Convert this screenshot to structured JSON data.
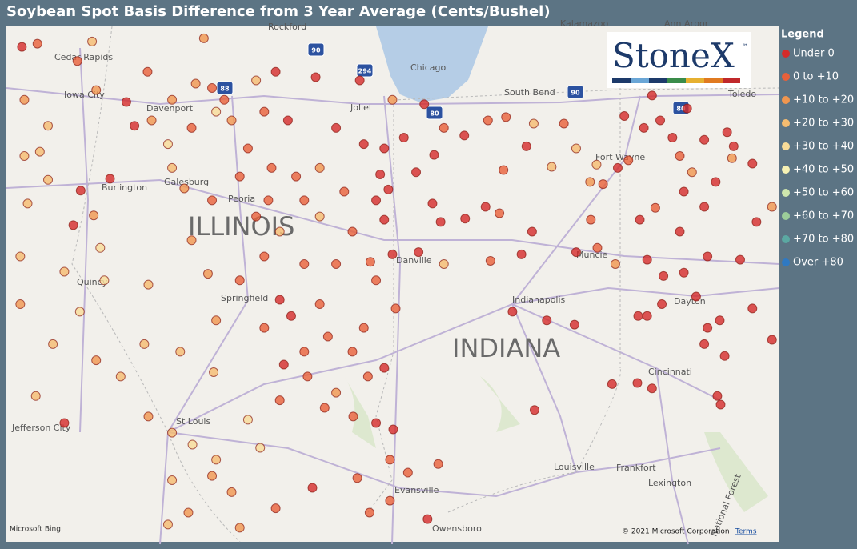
{
  "title": "Soybean Spot Basis Difference from 3 Year Average (Cents/Bushel)",
  "legend": {
    "title": "Legend",
    "items": [
      {
        "label": "Under 0",
        "color": "#d42a2a"
      },
      {
        "label": "0 to +10",
        "color": "#e8603a"
      },
      {
        "label": "+10 to +20",
        "color": "#f0964f"
      },
      {
        "label": "+20 to +30",
        "color": "#f5bc70"
      },
      {
        "label": "+30 to +40",
        "color": "#f8dc98"
      },
      {
        "label": "+40 to +50",
        "color": "#f6f1b4"
      },
      {
        "label": "+50 to +60",
        "color": "#cfe6ad"
      },
      {
        "label": "+60 to +70",
        "color": "#9ccd99"
      },
      {
        "label": "+70 to +80",
        "color": "#5ba8a2"
      },
      {
        "label": "Over +80",
        "color": "#2f79c2"
      }
    ]
  },
  "logo": {
    "text": "StoneX",
    "mark": "™"
  },
  "map_labels": [
    "Rockford",
    "Chicago",
    "Cedar Rapids",
    "Iowa City",
    "Davenport",
    "Joliet",
    "South Bend",
    "Kalamazoo",
    "Ann Arbor",
    "Toledo",
    "Burlington",
    "Galesburg",
    "Peoria",
    "ILLINOIS",
    "Danville",
    "Muncie",
    "Fort Wayne",
    "Quincy",
    "Springfield",
    "Indianapolis",
    "Dayton",
    "INDIANA",
    "Cincinnati",
    "Jefferson City",
    "St Louis",
    "Louisville",
    "Frankfort",
    "Lexington",
    "Evansville",
    "Owensboro",
    "National Forest"
  ],
  "shields": [
    "90",
    "294",
    "88",
    "80",
    "90",
    "80"
  ],
  "attribution": {
    "provider": "Microsoft Bing",
    "copyright": "© 2021 Microsoft Corporation",
    "terms": "Terms"
  },
  "points": [
    [
      -92.19,
      42.11,
      1
    ],
    [
      -92.38,
      42.08,
      0
    ],
    [
      -91.7,
      41.95,
      1
    ],
    [
      -91.52,
      42.13,
      3
    ],
    [
      -92.35,
      41.59,
      2
    ],
    [
      -91.47,
      41.68,
      2
    ],
    [
      -91.1,
      41.57,
      0
    ],
    [
      -91.0,
      41.35,
      0
    ],
    [
      -92.06,
      41.35,
      3
    ],
    [
      -92.35,
      41.07,
      3
    ],
    [
      -91.66,
      40.75,
      0
    ],
    [
      -91.3,
      40.86,
      0
    ],
    [
      -91.75,
      40.43,
      0
    ],
    [
      -91.5,
      40.52,
      2
    ],
    [
      -92.31,
      40.63,
      3
    ],
    [
      -91.42,
      40.22,
      4
    ],
    [
      -91.37,
      39.92,
      4
    ],
    [
      -91.86,
      40.0,
      3
    ],
    [
      -90.83,
      39.88,
      3
    ],
    [
      -91.67,
      39.63,
      4
    ],
    [
      -90.88,
      39.33,
      3
    ],
    [
      -91.86,
      38.6,
      0
    ],
    [
      -92.21,
      38.85,
      3
    ],
    [
      -90.54,
      38.51,
      3
    ],
    [
      -90.29,
      38.4,
      4
    ],
    [
      -90.54,
      38.07,
      3
    ],
    [
      -90.05,
      38.11,
      2
    ],
    [
      -89.81,
      37.96,
      2
    ],
    [
      -90.34,
      37.77,
      2
    ],
    [
      -89.46,
      38.37,
      4
    ],
    [
      -89.61,
      38.63,
      4
    ],
    [
      -90.03,
      39.07,
      3
    ],
    [
      -90.44,
      39.26,
      3
    ],
    [
      -90.0,
      39.55,
      2
    ],
    [
      -90.1,
      39.98,
      2
    ],
    [
      -90.3,
      40.29,
      2
    ],
    [
      -90.05,
      40.66,
      1
    ],
    [
      -90.39,
      40.77,
      2
    ],
    [
      -90.54,
      40.96,
      3
    ],
    [
      -90.59,
      41.18,
      4
    ],
    [
      -90.3,
      41.33,
      1
    ],
    [
      -90.05,
      41.7,
      1
    ],
    [
      -89.81,
      41.4,
      2
    ],
    [
      -89.9,
      41.59,
      1
    ],
    [
      -89.51,
      41.77,
      3
    ],
    [
      -89.27,
      41.85,
      0
    ],
    [
      -88.78,
      41.8,
      0
    ],
    [
      -89.12,
      41.4,
      0
    ],
    [
      -88.53,
      41.33,
      0
    ],
    [
      -89.61,
      41.14,
      1
    ],
    [
      -89.32,
      40.96,
      1
    ],
    [
      -89.02,
      40.88,
      1
    ],
    [
      -88.73,
      40.96,
      2
    ],
    [
      -88.92,
      40.66,
      1
    ],
    [
      -89.36,
      40.66,
      1
    ],
    [
      -89.71,
      40.88,
      1
    ],
    [
      -89.51,
      40.51,
      1
    ],
    [
      -89.22,
      40.37,
      3
    ],
    [
      -88.73,
      40.51,
      3
    ],
    [
      -88.43,
      40.74,
      1
    ],
    [
      -88.33,
      40.37,
      1
    ],
    [
      -88.53,
      40.07,
      1
    ],
    [
      -88.92,
      40.07,
      1
    ],
    [
      -89.41,
      40.14,
      1
    ],
    [
      -89.71,
      39.92,
      1
    ],
    [
      -89.22,
      39.74,
      0
    ],
    [
      -89.08,
      39.59,
      0
    ],
    [
      -89.41,
      39.48,
      1
    ],
    [
      -88.73,
      39.7,
      1
    ],
    [
      -88.63,
      39.4,
      1
    ],
    [
      -88.92,
      39.26,
      1
    ],
    [
      -89.17,
      39.14,
      0
    ],
    [
      -88.33,
      39.26,
      1
    ],
    [
      -88.88,
      39.03,
      1
    ],
    [
      -88.53,
      38.88,
      2
    ],
    [
      -89.22,
      38.81,
      1
    ],
    [
      -88.67,
      38.74,
      1
    ],
    [
      -88.32,
      38.66,
      1
    ],
    [
      -88.04,
      38.6,
      0
    ],
    [
      -87.83,
      38.54,
      0
    ],
    [
      -87.94,
      39.11,
      0
    ],
    [
      -88.14,
      39.03,
      1
    ],
    [
      -88.19,
      39.48,
      1
    ],
    [
      -87.8,
      39.66,
      1
    ],
    [
      -88.04,
      39.92,
      1
    ],
    [
      -88.11,
      40.09,
      1
    ],
    [
      -87.84,
      40.16,
      0
    ],
    [
      -87.94,
      40.48,
      0
    ],
    [
      -87.89,
      40.76,
      0
    ],
    [
      -87.99,
      40.9,
      0
    ],
    [
      -88.04,
      40.66,
      0
    ],
    [
      -88.19,
      41.18,
      0
    ],
    [
      -87.94,
      41.14,
      0
    ],
    [
      -87.7,
      41.24,
      0
    ],
    [
      -87.55,
      40.92,
      0
    ],
    [
      -87.33,
      41.08,
      0
    ],
    [
      -87.84,
      41.59,
      2
    ],
    [
      -87.45,
      41.55,
      0
    ],
    [
      -87.21,
      41.33,
      1
    ],
    [
      -86.96,
      41.26,
      0
    ],
    [
      -86.67,
      41.4,
      1
    ],
    [
      -86.45,
      41.43,
      1
    ],
    [
      -86.11,
      41.37,
      3
    ],
    [
      -85.74,
      41.37,
      1
    ],
    [
      -85.59,
      41.14,
      3
    ],
    [
      -85.89,
      40.97,
      3
    ],
    [
      -86.2,
      41.16,
      0
    ],
    [
      -86.48,
      40.94,
      1
    ],
    [
      -86.7,
      40.6,
      0
    ],
    [
      -86.95,
      40.49,
      0
    ],
    [
      -86.53,
      40.54,
      1
    ],
    [
      -87.35,
      40.63,
      0
    ],
    [
      -87.25,
      40.46,
      0
    ],
    [
      -87.52,
      40.18,
      0
    ],
    [
      -87.21,
      40.07,
      3
    ],
    [
      -86.64,
      40.1,
      1
    ],
    [
      -86.26,
      40.16,
      0
    ],
    [
      -86.13,
      40.37,
      0
    ],
    [
      -85.59,
      40.18,
      0
    ],
    [
      -85.33,
      40.22,
      1
    ],
    [
      -85.11,
      40.07,
      2
    ],
    [
      -85.41,
      40.48,
      1
    ],
    [
      -85.26,
      40.81,
      1
    ],
    [
      -85.42,
      40.83,
      2
    ],
    [
      -85.08,
      40.96,
      0
    ],
    [
      -84.95,
      41.03,
      1
    ],
    [
      -85.34,
      40.99,
      3
    ],
    [
      -85.0,
      41.44,
      0
    ],
    [
      -84.76,
      41.33,
      0
    ],
    [
      -84.66,
      41.63,
      0
    ],
    [
      -84.56,
      41.4,
      0
    ],
    [
      -84.41,
      41.24,
      0
    ],
    [
      -84.32,
      41.07,
      1
    ],
    [
      -84.17,
      40.92,
      2
    ],
    [
      -84.27,
      40.74,
      0
    ],
    [
      -84.02,
      40.6,
      0
    ],
    [
      -83.88,
      40.83,
      0
    ],
    [
      -83.68,
      41.05,
      2
    ],
    [
      -83.43,
      41.0,
      0
    ],
    [
      -83.66,
      41.16,
      0
    ],
    [
      -83.74,
      41.29,
      0
    ],
    [
      -84.23,
      41.51,
      0
    ],
    [
      -84.02,
      41.22,
      0
    ],
    [
      -84.81,
      40.48,
      0
    ],
    [
      -84.62,
      40.59,
      1
    ],
    [
      -84.32,
      40.37,
      0
    ],
    [
      -84.72,
      40.11,
      0
    ],
    [
      -84.52,
      39.96,
      0
    ],
    [
      -84.27,
      39.99,
      0
    ],
    [
      -83.98,
      40.14,
      0
    ],
    [
      -83.58,
      40.11,
      0
    ],
    [
      -83.38,
      40.46,
      0
    ],
    [
      -83.19,
      40.6,
      2
    ],
    [
      -84.72,
      39.59,
      0
    ],
    [
      -84.54,
      39.7,
      0
    ],
    [
      -84.12,
      39.77,
      0
    ],
    [
      -83.83,
      39.55,
      0
    ],
    [
      -83.98,
      39.48,
      0
    ],
    [
      -84.02,
      39.33,
      0
    ],
    [
      -83.77,
      39.22,
      0
    ],
    [
      -83.43,
      39.66,
      0
    ],
    [
      -83.19,
      39.37,
      0
    ],
    [
      -84.66,
      38.92,
      0
    ],
    [
      -84.84,
      38.97,
      0
    ],
    [
      -85.15,
      38.96,
      0
    ],
    [
      -83.86,
      38.85,
      0
    ],
    [
      -83.82,
      38.77,
      0
    ],
    [
      -86.1,
      38.72,
      0
    ],
    [
      -86.37,
      39.63,
      0
    ],
    [
      -85.95,
      39.55,
      0
    ],
    [
      -85.61,
      39.51,
      0
    ],
    [
      -84.83,
      39.59,
      0
    ],
    [
      -87.87,
      38.26,
      1
    ],
    [
      -87.28,
      38.22,
      1
    ],
    [
      -87.65,
      38.14,
      1
    ],
    [
      -88.82,
      38.0,
      0
    ],
    [
      -88.27,
      38.09,
      1
    ],
    [
      -87.87,
      37.88,
      1
    ],
    [
      -87.41,
      37.71,
      0
    ],
    [
      -88.12,
      37.77,
      1
    ],
    [
      -89.27,
      37.81,
      1
    ],
    [
      -89.71,
      37.63,
      2
    ],
    [
      -90.59,
      37.66,
      3
    ],
    [
      -90.0,
      38.26,
      3
    ],
    [
      -90.83,
      38.66,
      2
    ],
    [
      -91.17,
      39.03,
      3
    ],
    [
      -91.47,
      39.18,
      2
    ],
    [
      -92.0,
      39.33,
      3
    ],
    [
      -92.4,
      39.7,
      2
    ],
    [
      -92.4,
      40.14,
      3
    ],
    [
      -92.06,
      40.85,
      3
    ],
    [
      -92.16,
      41.11,
      3
    ],
    [
      -90.79,
      41.4,
      2
    ],
    [
      -90.54,
      41.59,
      2
    ],
    [
      -90.25,
      41.74,
      2
    ],
    [
      -90.84,
      41.85,
      1
    ],
    [
      -90.15,
      42.16,
      2
    ],
    [
      -90.0,
      41.48,
      4
    ],
    [
      -89.41,
      41.48,
      1
    ],
    [
      -88.24,
      41.77,
      0
    ]
  ]
}
